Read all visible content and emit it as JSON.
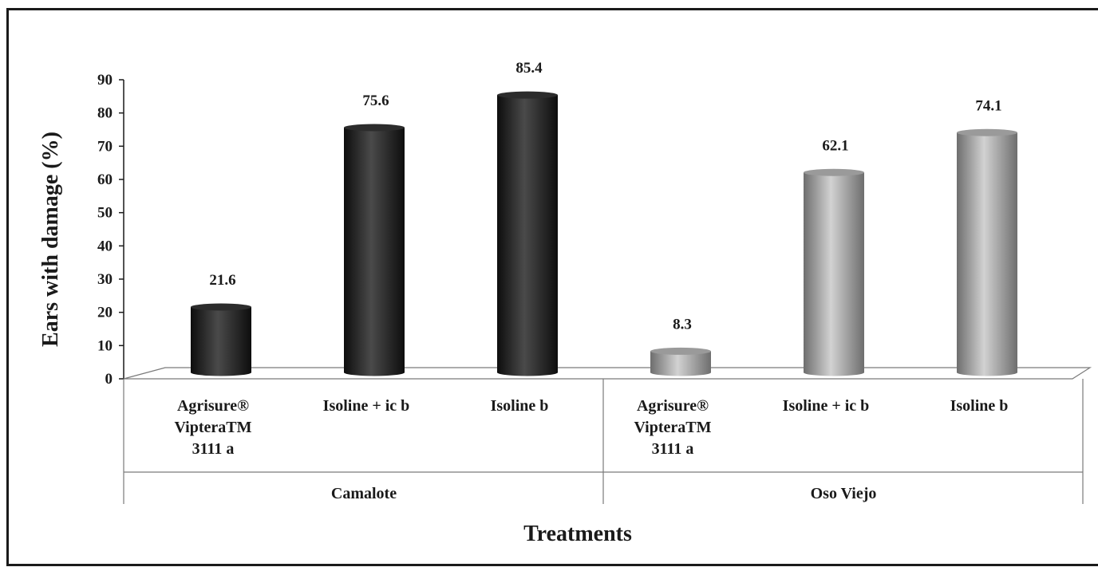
{
  "chart_data": {
    "type": "bar",
    "ylabel": "Ears with damage  (%)",
    "xlabel": "Treatments",
    "ylim": [
      0,
      90
    ],
    "yticks": [
      "0",
      "10",
      "20",
      "30",
      "40",
      "50",
      "60",
      "70",
      "80",
      "90"
    ],
    "groups": [
      {
        "name": "Camalote",
        "color": "#1f1f1f",
        "bars": [
          {
            "category": [
              "Agrisure®",
              "VipteraTM",
              "3111 a"
            ],
            "value": 21.6,
            "label": "21.6"
          },
          {
            "category": [
              "Isoline + ic b"
            ],
            "value": 75.6,
            "label": "75.6"
          },
          {
            "category": [
              "Isoline  b"
            ],
            "value": 85.4,
            "label": "85.4"
          }
        ]
      },
      {
        "name": "Oso Viejo",
        "color": "#8c8c8c",
        "bars": [
          {
            "category": [
              "Agrisure®",
              "VipteraTM",
              "3111 a"
            ],
            "value": 8.3,
            "label": "8.3"
          },
          {
            "category": [
              "Isoline + ic b"
            ],
            "value": 62.1,
            "label": "62.1"
          },
          {
            "category": [
              "Isoline b"
            ],
            "value": 74.1,
            "label": "74.1"
          }
        ]
      }
    ],
    "grid": false,
    "legend": "none"
  }
}
